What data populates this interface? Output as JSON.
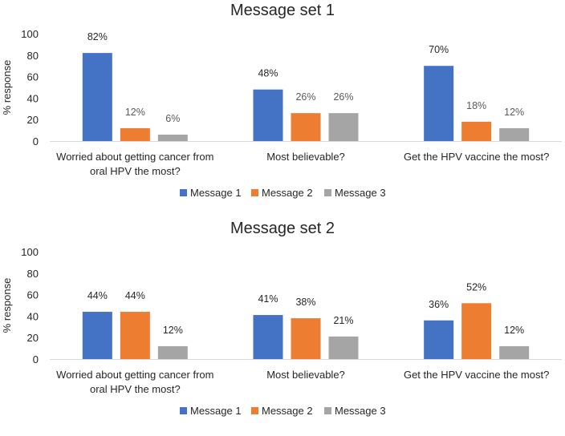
{
  "colors": {
    "message_1": "#4472C4",
    "message_2": "#ED7D31",
    "message_3": "#A5A5A5"
  },
  "chart_data": [
    {
      "type": "bar",
      "title": "Message set 1",
      "ylabel": "% response",
      "xlabel": "",
      "ylim": [
        0,
        100
      ],
      "yticks": [
        "0",
        "20",
        "40",
        "60",
        "80",
        "100"
      ],
      "grid": false,
      "legend_position": "bottom",
      "categories": [
        [
          "Worried about getting cancer from",
          "oral HPV the most?"
        ],
        [
          "Most believable?"
        ],
        [
          "Get the HPV vaccine the most?"
        ]
      ],
      "series": [
        {
          "name": "Message 1",
          "values": [
            82,
            48,
            70
          ],
          "labels": [
            "82%",
            "48%",
            "70%"
          ]
        },
        {
          "name": "Message 2",
          "values": [
            12,
            26,
            18
          ],
          "labels": [
            "12%",
            "26%",
            "18%"
          ]
        },
        {
          "name": "Message 3",
          "values": [
            6,
            26,
            12
          ],
          "labels": [
            "6%",
            "26%",
            "12%"
          ]
        }
      ]
    },
    {
      "type": "bar",
      "title": "Message set 2",
      "ylabel": "% response",
      "xlabel": "",
      "ylim": [
        0,
        100
      ],
      "yticks": [
        "0",
        "20",
        "40",
        "60",
        "80",
        "100"
      ],
      "grid": false,
      "legend_position": "bottom",
      "categories": [
        [
          "Worried about getting cancer from",
          "oral HPV the most?"
        ],
        [
          "Most believable?"
        ],
        [
          "Get the HPV vaccine the most?"
        ]
      ],
      "series": [
        {
          "name": "Message 1",
          "values": [
            44,
            41,
            36
          ],
          "labels": [
            "44%",
            "41%",
            "36%"
          ]
        },
        {
          "name": "Message 2",
          "values": [
            44,
            38,
            52
          ],
          "labels": [
            "44%",
            "38%",
            "52%"
          ]
        },
        {
          "name": "Message 3",
          "values": [
            12,
            21,
            12
          ],
          "labels": [
            "12%",
            "21%",
            "12%"
          ]
        }
      ]
    }
  ]
}
